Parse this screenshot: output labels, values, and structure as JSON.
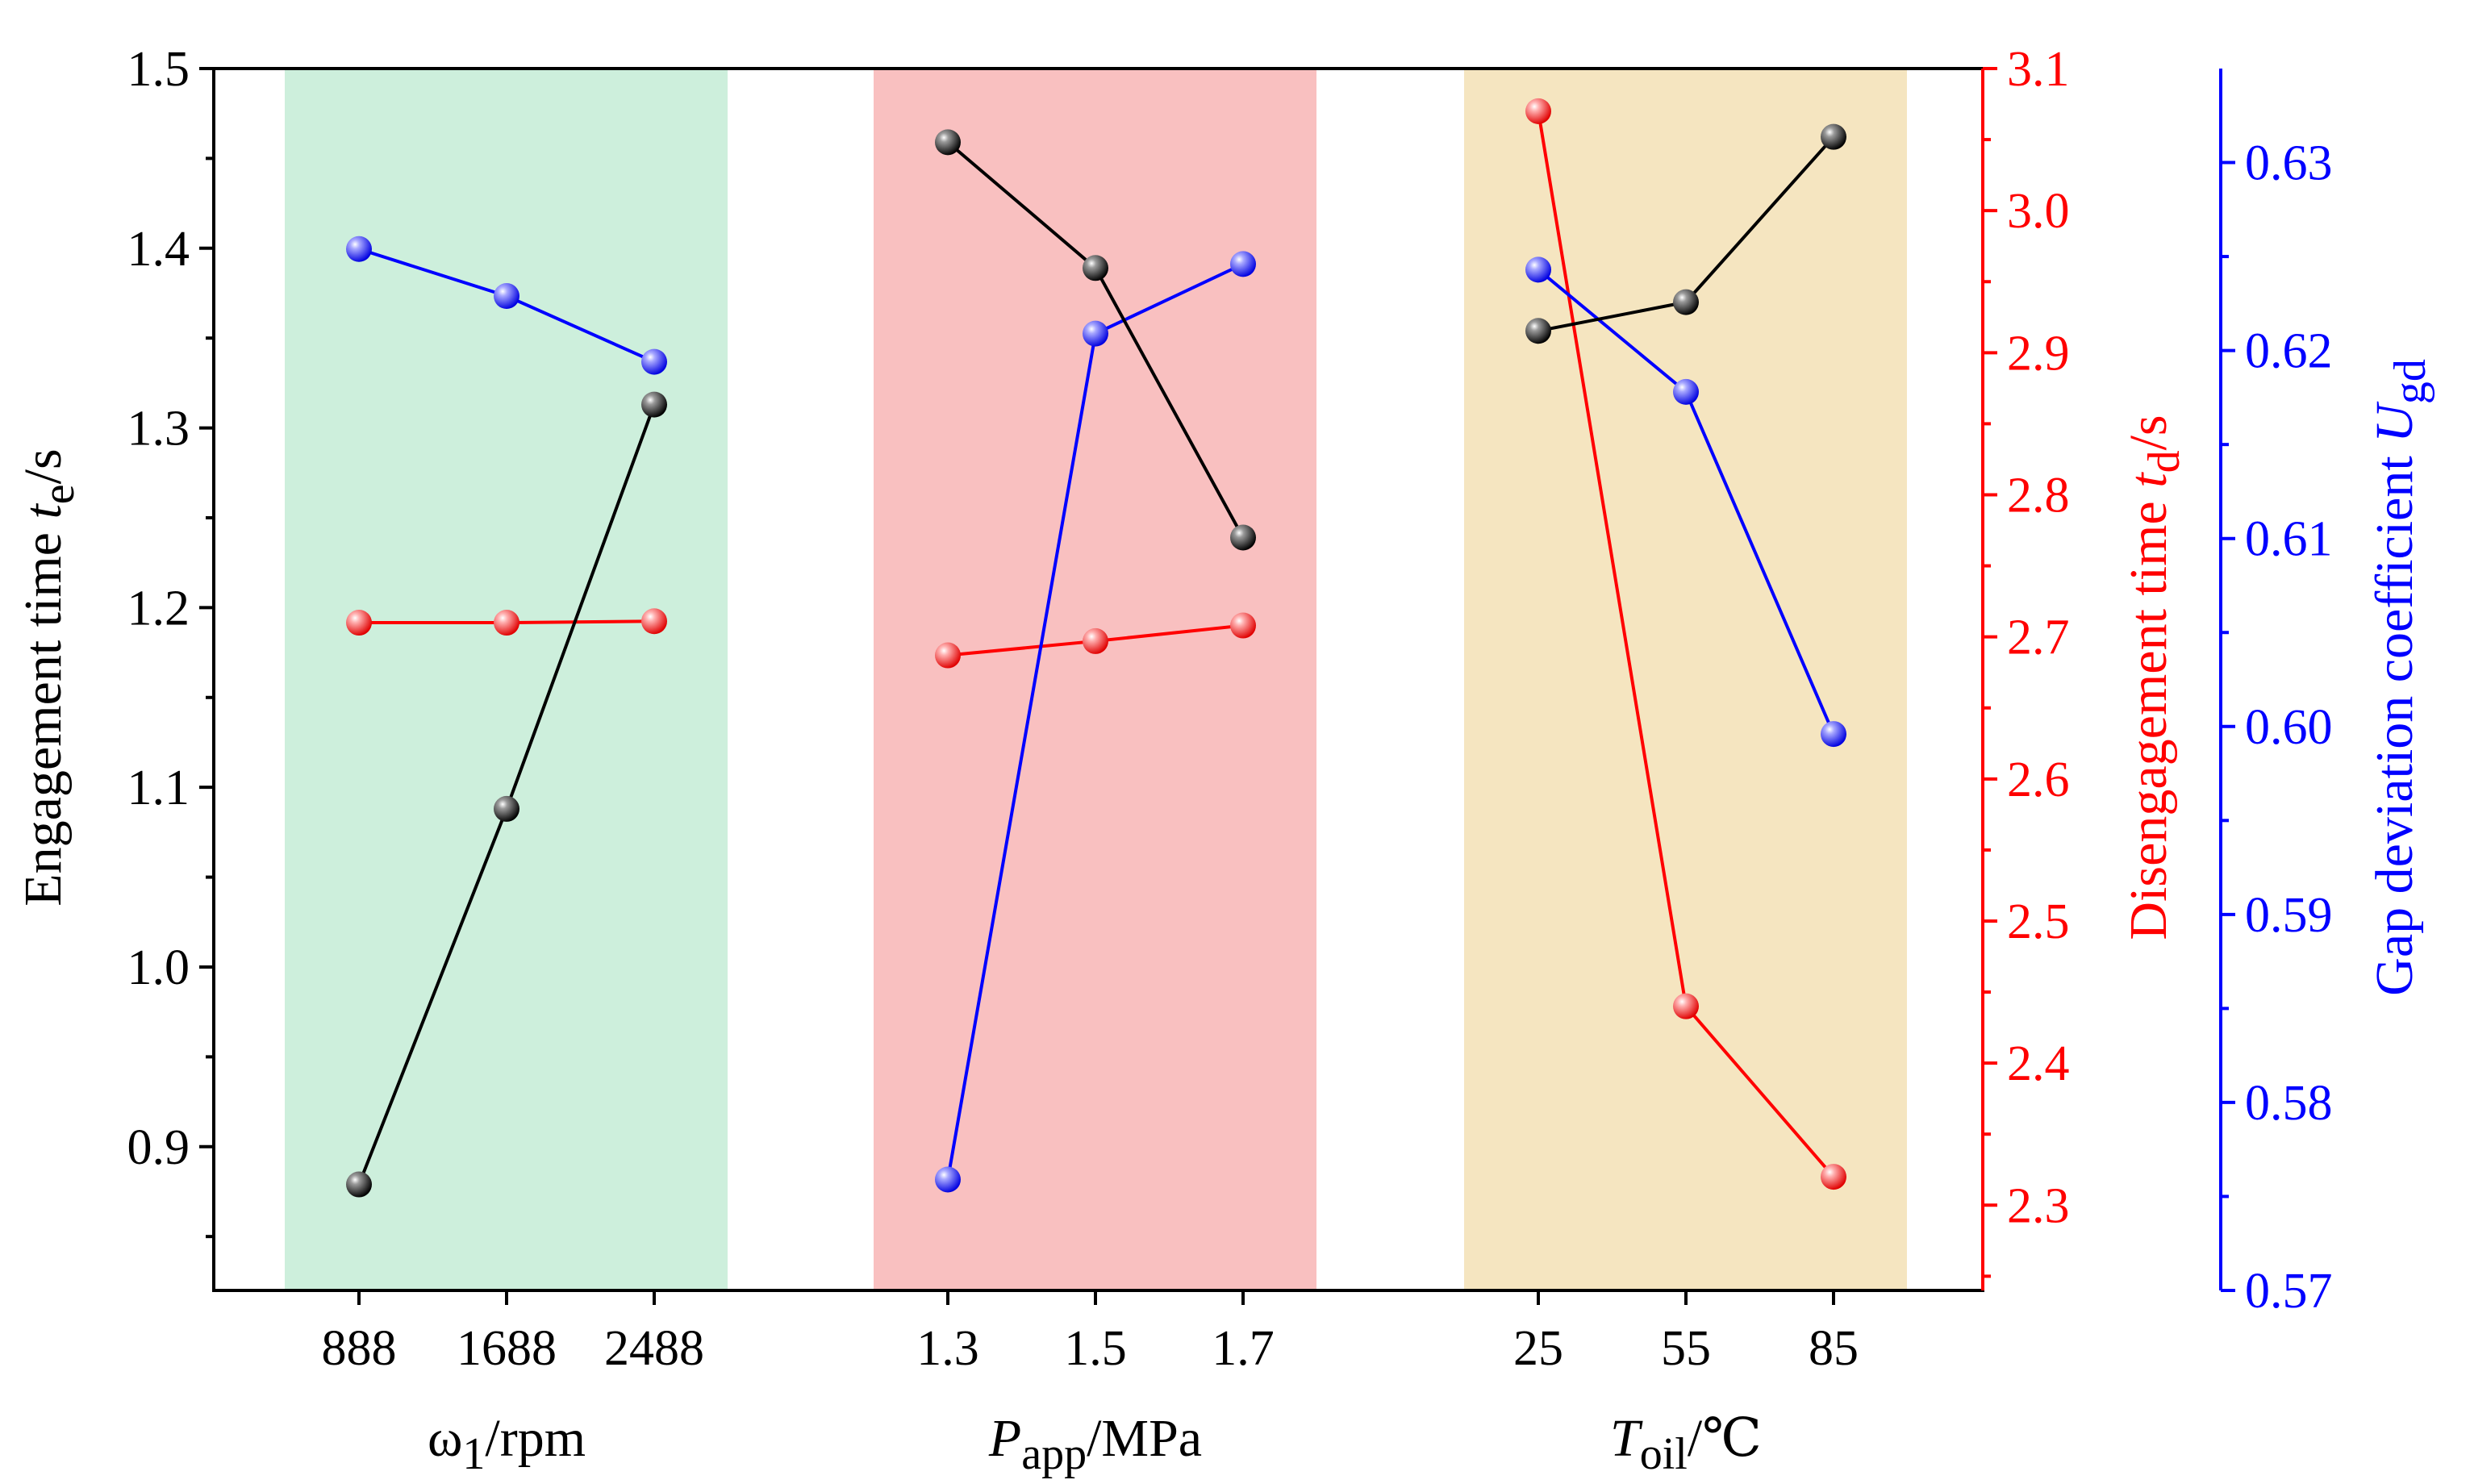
{
  "chart_data": {
    "type": "line",
    "title": "",
    "left_axis": {
      "label_prefix": "Engagement time ",
      "label_var": "t",
      "label_sub": "e",
      "label_suffix": "/s",
      "ylim": [
        0.82,
        1.5
      ],
      "ticks": [
        "0.9",
        "1.0",
        "1.1",
        "1.2",
        "1.3",
        "1.4",
        "1.5"
      ],
      "color": "#000000"
    },
    "right_axis_1": {
      "label_prefix": "Disengagement time ",
      "label_var": "t",
      "label_sub": "d",
      "label_suffix": "/s",
      "ylim": [
        2.24,
        3.1
      ],
      "ticks": [
        "2.3",
        "2.4",
        "2.5",
        "2.6",
        "2.7",
        "2.8",
        "2.9",
        "3.0",
        "3.1"
      ],
      "color": "#ff0000"
    },
    "right_axis_2": {
      "label_prefix": "Gap deviation coefficient ",
      "label_var": "U",
      "label_sub": "gd",
      "label_suffix": "",
      "ylim": [
        0.57,
        0.635
      ],
      "ticks": [
        "0.57",
        "0.58",
        "0.59",
        "0.60",
        "0.61",
        "0.62",
        "0.63"
      ],
      "color": "#0000ff"
    },
    "groups": [
      {
        "name": "omega",
        "band_color": "#cdefdc",
        "categories": [
          "888",
          "1688",
          "2488"
        ],
        "xlabel_var": "ω",
        "xlabel_sub": "1",
        "xlabel_suffix": "/rpm",
        "engagement_time": [
          0.879,
          1.088,
          1.313
        ],
        "disengagement_time": [
          2.71,
          2.71,
          2.711
        ],
        "gap_deviation": [
          0.6254,
          0.6229,
          0.6194
        ]
      },
      {
        "name": "pressure",
        "band_color": "#f9c0c0",
        "categories": [
          "1.3",
          "1.5",
          "1.7"
        ],
        "xlabel_var": "P",
        "xlabel_sub": "app",
        "xlabel_suffix": "/MPa",
        "engagement_time": [
          1.459,
          1.389,
          1.239
        ],
        "disengagement_time": [
          2.687,
          2.697,
          2.708
        ],
        "gap_deviation": [
          0.5759,
          0.6209,
          0.6246
        ]
      },
      {
        "name": "temperature",
        "band_color": "#f5e5c0",
        "categories": [
          "25",
          "55",
          "85"
        ],
        "xlabel_var": "T",
        "xlabel_sub": "oil",
        "xlabel_suffix": "/℃",
        "engagement_time": [
          1.354,
          1.37,
          1.462
        ],
        "disengagement_time": [
          3.07,
          2.44,
          2.32
        ],
        "gap_deviation": [
          0.6243,
          0.6178,
          0.5996
        ]
      }
    ],
    "colors": {
      "engagement": "#000000",
      "disengagement": "#ff0000",
      "gap": "#0000ff"
    }
  }
}
